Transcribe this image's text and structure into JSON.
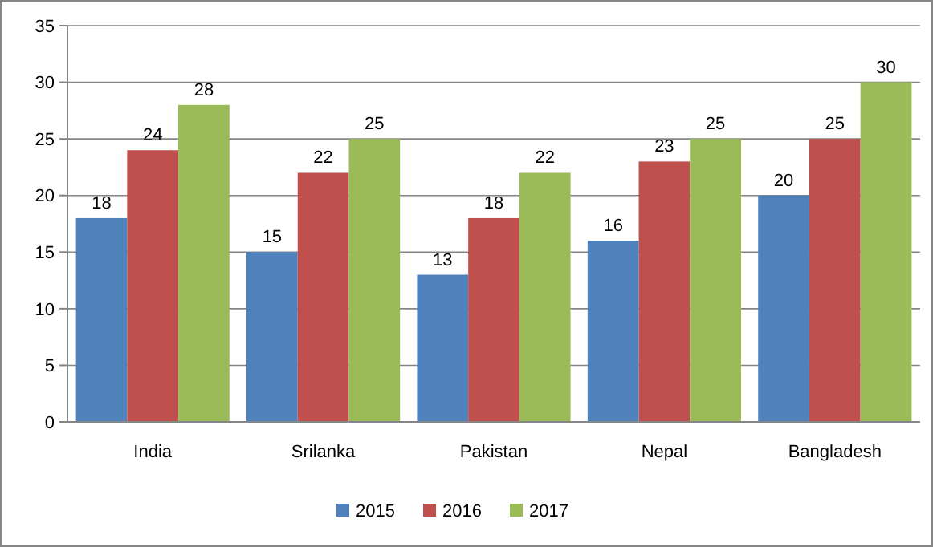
{
  "chart_data": {
    "type": "bar",
    "categories": [
      "India",
      "Srilanka",
      "Pakistan",
      "Nepal",
      "Bangladesh"
    ],
    "series": [
      {
        "name": "2015",
        "color": "#4f81bd",
        "values": [
          18,
          15,
          13,
          16,
          20
        ]
      },
      {
        "name": "2016",
        "color": "#c0504d",
        "values": [
          24,
          22,
          18,
          23,
          25
        ]
      },
      {
        "name": "2017",
        "color": "#9bbb59",
        "values": [
          28,
          25,
          22,
          25,
          30
        ]
      }
    ],
    "ylim": [
      0,
      35
    ],
    "yticks": [
      0,
      5,
      10,
      15,
      20,
      25,
      30,
      35
    ],
    "grid": "y",
    "legend": "bottom",
    "data_labels": true
  }
}
